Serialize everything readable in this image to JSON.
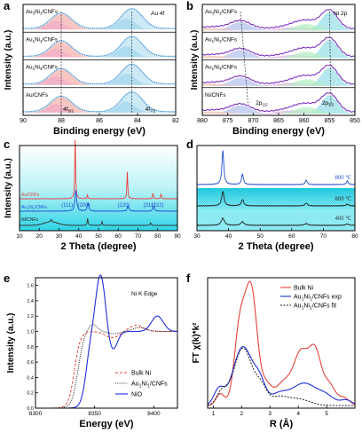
{
  "panel_letters": [
    "a",
    "b",
    "c",
    "d",
    "e",
    "f"
  ],
  "chart_data": [
    {
      "panel": "a",
      "type": "line",
      "xlabel": "Binding energy (eV)",
      "ylabel": "Intensity (a.u.)",
      "xlim": [
        90,
        82
      ],
      "xticks": [
        90,
        88,
        86,
        84,
        82
      ],
      "annotation": "Au 4f",
      "peak_labels": [
        "4f",
        "4f"
      ],
      "peak_subscripts": [
        "5/2",
        "7/2"
      ],
      "peak_positions": [
        88.0,
        84.3
      ],
      "series": [
        {
          "name": "Au3Ni1/CNFs",
          "name_parts": [
            "Au",
            "3",
            "Ni",
            "1",
            "/CNFs"
          ]
        },
        {
          "name": "Au1Ni1/CNFs",
          "name_parts": [
            "Au",
            "1",
            "Ni",
            "1",
            "/CNFs"
          ]
        },
        {
          "name": "Au1Ni3/CNFs",
          "name_parts": [
            "Au",
            "1",
            "Ni",
            "3",
            "/CNFs"
          ]
        },
        {
          "name": "Au/CNFs",
          "name_parts": [
            "Au/CNFs",
            "",
            "",
            "",
            ""
          ]
        }
      ]
    },
    {
      "panel": "b",
      "type": "line",
      "xlabel": "Binding energy (eV)",
      "ylabel": "Intensity (a.u.)",
      "xlim": [
        880,
        850
      ],
      "xticks": [
        880,
        875,
        870,
        865,
        860,
        855,
        850
      ],
      "annotation": "Ni 2p",
      "peak_labels": [
        "2p",
        "2p"
      ],
      "peak_subscripts": [
        "1/2",
        "3/2"
      ],
      "peak_positions": [
        872.5,
        855.0
      ],
      "series": [
        {
          "name": "Au3Ni1/CNFs",
          "name_parts": [
            "Au",
            "3",
            "Ni",
            "1",
            "/CNFs"
          ]
        },
        {
          "name": "Au1Ni1/CNFs",
          "name_parts": [
            "Au",
            "1",
            "Ni",
            "1",
            "/CNFs"
          ]
        },
        {
          "name": "Au1Ni3/CNFs",
          "name_parts": [
            "Au",
            "1",
            "Ni",
            "3",
            "/CNFs"
          ]
        },
        {
          "name": "Ni/CNFs",
          "name_parts": [
            "Ni/CNFs",
            "",
            "",
            "",
            ""
          ]
        }
      ]
    },
    {
      "panel": "c",
      "type": "line",
      "xlabel": "2 Theta (degree)",
      "ylabel": "Intensity (a.u.)",
      "xlim": [
        10,
        90
      ],
      "xticks": [
        10,
        20,
        30,
        40,
        50,
        60,
        70,
        80,
        90
      ],
      "series": [
        {
          "name": "Au/CNFs",
          "color": "#e8413a",
          "peaks": [
            38.2,
            44.4,
            64.6,
            77.6,
            81.7
          ]
        },
        {
          "name": "Au1Ni1/CNFs",
          "color": "#1f4fd1",
          "peaks": [
            38.5,
            44.7,
            65.0,
            78.0
          ]
        },
        {
          "name": "Ni/CNFs",
          "color": "#333333",
          "peaks": [
            26.0,
            44.5,
            51.8,
            76.4
          ]
        }
      ],
      "hkl": [
        "(111)",
        "(200)",
        "(220)",
        "(311)",
        "(222)"
      ],
      "hkl_positions": [
        38.2,
        44.4,
        64.6,
        77.6,
        81.7
      ]
    },
    {
      "panel": "d",
      "type": "line",
      "xlabel": "2 Theta (degree)",
      "ylabel": "",
      "xlim": [
        30,
        80
      ],
      "xticks": [
        30,
        40,
        50,
        60,
        70,
        80
      ],
      "series": [
        {
          "name": "800 ℃",
          "color": "#1f4fd1",
          "peaks": [
            38.2,
            44.4,
            64.6,
            77.6
          ]
        },
        {
          "name": "600 ℃",
          "color": "#222222",
          "peaks": [
            38.2,
            44.4,
            64.6,
            77.6
          ]
        },
        {
          "name": "400 ℃",
          "color": "#222222",
          "peaks": [
            38.2,
            44.4,
            64.6,
            77.6
          ]
        }
      ]
    },
    {
      "panel": "e",
      "type": "line",
      "xlabel": "Energy (eV)",
      "ylabel": "Intensity (a.u.)",
      "title": "Ni K Edge",
      "xlim": [
        8300,
        8420
      ],
      "ylim": [
        0,
        1.7
      ],
      "xticks": [
        8300,
        8350,
        8400
      ],
      "yticks": [
        0.0,
        0.2,
        0.4,
        0.6,
        0.8,
        1.0,
        1.2,
        1.4,
        1.6
      ],
      "series": [
        {
          "name": "Bulk Ni",
          "color": "#e8413a",
          "style": "dashed"
        },
        {
          "name": "Au1Ni1/CNFs",
          "color": "#222222",
          "style": "dotted",
          "name_parts": [
            "Au",
            "1",
            "Ni",
            "1",
            "/CNFs"
          ]
        },
        {
          "name": "NiO",
          "color": "#1f2fd8",
          "style": "solid"
        }
      ]
    },
    {
      "panel": "f",
      "type": "line",
      "xlabel": "R (Å)",
      "ylabel": "FT χ(k)*k²",
      "xlim": [
        0.8,
        6
      ],
      "xticks": [
        1,
        2,
        3,
        4,
        5
      ],
      "series": [
        {
          "name": "Bulk Ni",
          "color": "#e8413a",
          "style": "solid"
        },
        {
          "name": "Au1Ni1/CNFs exp",
          "color": "#1f2fd8",
          "style": "solid",
          "name_parts": [
            "Au",
            "1",
            "Ni",
            "1",
            "/CNFs exp"
          ]
        },
        {
          "name": "Au1Ni1/CNFs fit",
          "color": "#222222",
          "style": "dashed",
          "name_parts": [
            "Au",
            "1",
            "Ni",
            "1",
            "/CNFs fit"
          ]
        }
      ]
    }
  ]
}
